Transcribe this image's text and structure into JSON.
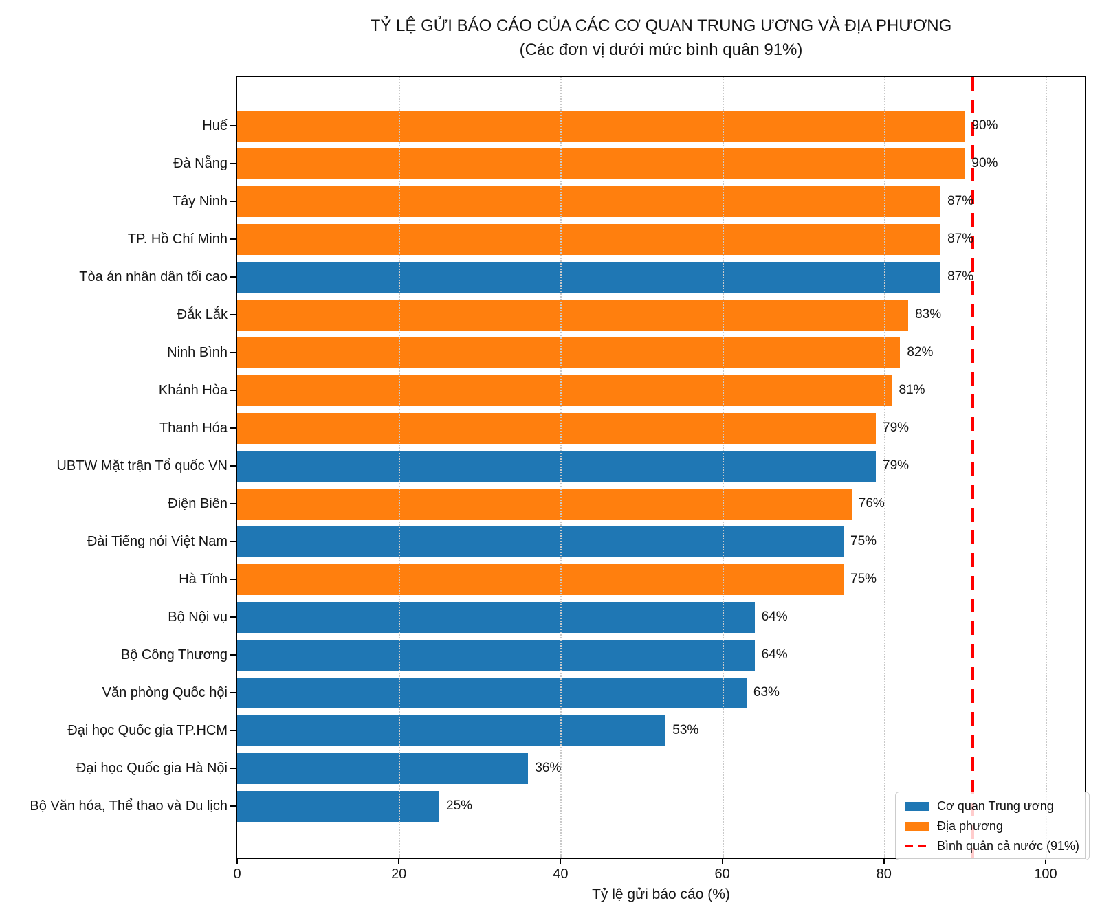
{
  "title": {
    "line1": "TỶ LỆ GỬI BÁO CÁO CỦA CÁC CƠ QUAN TRUNG ƯƠNG VÀ ĐỊA PHƯƠNG",
    "line2": "(Các đơn vị dưới mức bình quân 91%)"
  },
  "chart_data": {
    "type": "bar",
    "orientation": "horizontal",
    "title": "TỶ LỆ GỬI BÁO CÁO CỦA CÁC CƠ QUAN TRUNG ƯƠNG VÀ ĐỊA PHƯƠNG",
    "subtitle": "(Các đơn vị dưới mức bình quân 91%)",
    "xlabel": "Tỷ lệ gửi báo cáo (%)",
    "ylabel": "",
    "xlim": [
      0,
      104.8
    ],
    "xticks": [
      0,
      20,
      40,
      60,
      80,
      100
    ],
    "grid": "vertical dotted",
    "value_suffix": "%",
    "groups": {
      "trung_uong": {
        "label": "Cơ quan Trung ương",
        "color": "#1f77b4"
      },
      "dia_phuong": {
        "label": "Địa phương",
        "color": "#ff7f0e"
      }
    },
    "bars": [
      {
        "label": "Huế",
        "value": 90,
        "group": "dia_phuong"
      },
      {
        "label": "Đà Nẵng",
        "value": 90,
        "group": "dia_phuong"
      },
      {
        "label": "Tây Ninh",
        "value": 87,
        "group": "dia_phuong"
      },
      {
        "label": "TP. Hồ Chí Minh",
        "value": 87,
        "group": "dia_phuong"
      },
      {
        "label": "Tòa án nhân dân tối cao",
        "value": 87,
        "group": "trung_uong"
      },
      {
        "label": "Đắk Lắk",
        "value": 83,
        "group": "dia_phuong"
      },
      {
        "label": "Ninh Bình",
        "value": 82,
        "group": "dia_phuong"
      },
      {
        "label": "Khánh Hòa",
        "value": 81,
        "group": "dia_phuong"
      },
      {
        "label": "Thanh Hóa",
        "value": 79,
        "group": "dia_phuong"
      },
      {
        "label": "UBTW Mặt trận Tổ quốc VN",
        "value": 79,
        "group": "trung_uong"
      },
      {
        "label": "Điện Biên",
        "value": 76,
        "group": "dia_phuong"
      },
      {
        "label": "Đài Tiếng nói Việt Nam",
        "value": 75,
        "group": "trung_uong"
      },
      {
        "label": "Hà Tĩnh",
        "value": 75,
        "group": "dia_phuong"
      },
      {
        "label": "Bộ Nội vụ",
        "value": 64,
        "group": "trung_uong"
      },
      {
        "label": "Bộ Công Thương",
        "value": 64,
        "group": "trung_uong"
      },
      {
        "label": "Văn phòng Quốc hội",
        "value": 63,
        "group": "trung_uong"
      },
      {
        "label": "Đại học Quốc gia TP.HCM",
        "value": 53,
        "group": "trung_uong"
      },
      {
        "label": "Đại học Quốc gia Hà Nội",
        "value": 36,
        "group": "trung_uong"
      },
      {
        "label": "Bộ Văn hóa, Thể thao và Du lịch",
        "value": 25,
        "group": "trung_uong"
      }
    ],
    "reference_line": {
      "value": 91,
      "label": "Bình quân cả nước (91%)",
      "color": "#ff0000",
      "style": "dashed"
    },
    "legend": {
      "position": "lower right",
      "entries": [
        {
          "type": "patch",
          "color": "#1f77b4",
          "label": "Cơ quan Trung ương"
        },
        {
          "type": "patch",
          "color": "#ff7f0e",
          "label": "Địa phương"
        },
        {
          "type": "dashed_line",
          "color": "#ff0000",
          "label": "Bình quân cả nước (91%)"
        }
      ]
    }
  }
}
